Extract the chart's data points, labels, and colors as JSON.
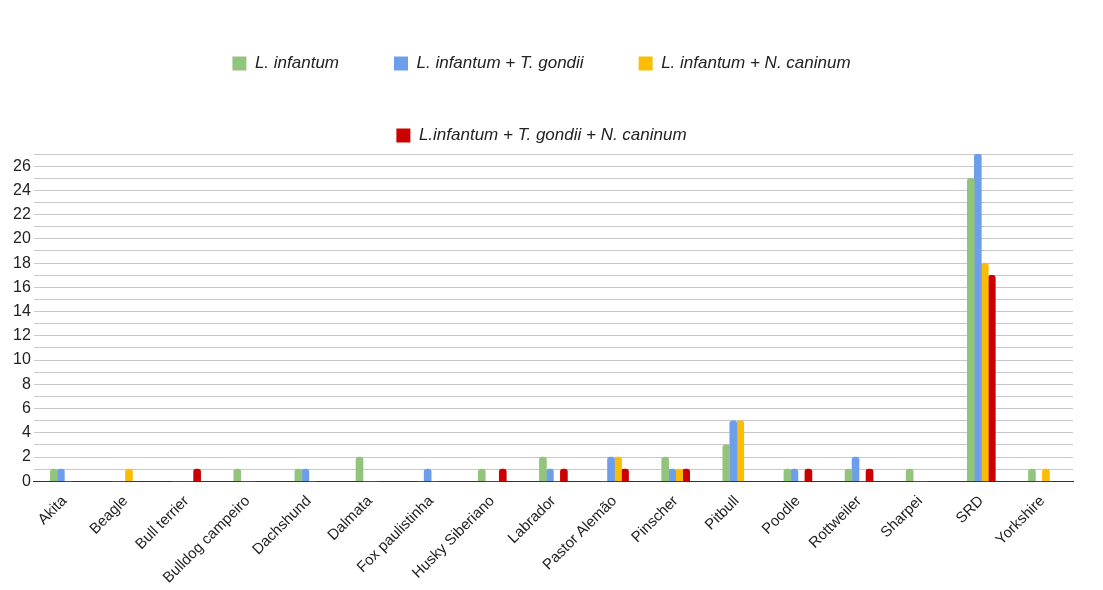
{
  "chart_data": {
    "type": "bar",
    "categories": [
      "Akita",
      "Beagle",
      "Bull terrier",
      "Bulldog campeiro",
      "Dachshund",
      "Dalmata",
      "Fox paulistinha",
      "Husky Siberiano",
      "Labrador",
      "Pastor Alemão",
      "Pinscher",
      "Pitbull",
      "Poodle",
      "Rottweiler",
      "Sharpei",
      "SRD",
      "Yorkshire"
    ],
    "series": [
      {
        "name": "L. infantum",
        "color": "#93c47d",
        "values": [
          1,
          0,
          0,
          1,
          1,
          2,
          0,
          1,
          2,
          0,
          2,
          3,
          1,
          1,
          1,
          25,
          1
        ]
      },
      {
        "name": "L. infantum + T. gondii",
        "color": "#6d9eeb",
        "values": [
          1,
          0,
          0,
          0,
          1,
          0,
          1,
          0,
          1,
          2,
          1,
          5,
          1,
          2,
          0,
          27,
          0
        ]
      },
      {
        "name": "L. infantum + N. caninum",
        "color": "#fbbc04",
        "values": [
          0,
          1,
          0,
          0,
          0,
          0,
          0,
          0,
          0,
          2,
          1,
          5,
          0,
          0,
          0,
          18,
          1
        ]
      },
      {
        "name": "L.infantum + T. gondii + N. caninum",
        "color": "#cc0000",
        "values": [
          0,
          0,
          1,
          0,
          0,
          0,
          0,
          1,
          1,
          1,
          1,
          0,
          1,
          1,
          0,
          17,
          0
        ]
      }
    ],
    "ylim": [
      0,
      27
    ],
    "yticks": [
      0,
      {
        "value": 1,
        "label": null
      },
      2,
      {
        "value": 3,
        "label": null
      },
      4,
      {
        "value": 5,
        "label": null
      },
      6,
      {
        "value": 7,
        "label": null
      },
      8,
      {
        "value": 9,
        "label": null
      },
      10,
      {
        "value": 11,
        "label": null
      },
      12,
      {
        "value": 13,
        "label": null
      },
      14,
      {
        "value": 15,
        "label": null
      },
      16,
      {
        "value": 17,
        "label": null
      },
      18,
      {
        "value": 19,
        "label": null
      },
      20,
      {
        "value": 21,
        "label": null
      },
      22,
      {
        "value": 23,
        "label": null
      },
      24,
      {
        "value": 25,
        "label": null
      },
      26,
      {
        "value": 27,
        "label": null
      }
    ],
    "grid": "y",
    "legend": "top"
  }
}
